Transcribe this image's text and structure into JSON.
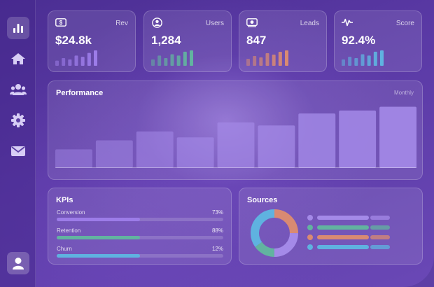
{
  "colors": {
    "accent": "#9c7ce8",
    "green": "#62b3a0",
    "orange": "#d98a72",
    "blue": "#5fb2e0",
    "purple": "#a48ae8"
  },
  "sidebar": {
    "items": [
      {
        "icon": "bar-chart-icon",
        "active": true
      },
      {
        "icon": "home-icon",
        "active": false
      },
      {
        "icon": "users-icon",
        "active": false
      },
      {
        "icon": "gear-icon",
        "active": false
      },
      {
        "icon": "mail-icon",
        "active": false
      }
    ],
    "avatar_icon": "user-icon"
  },
  "stats": [
    {
      "label": "Rev",
      "value": "$24.8k",
      "icon": "dollar-bill-icon",
      "color": "#9c7ce8",
      "spark": [
        4,
        6,
        5,
        8,
        7,
        10,
        12
      ]
    },
    {
      "label": "Users",
      "value": "1,284",
      "icon": "user-circle-icon",
      "color": "#62b3a0",
      "spark": [
        5,
        8,
        6,
        9,
        8,
        11,
        12
      ]
    },
    {
      "label": "Leads",
      "value": "847",
      "icon": "money-icon",
      "color": "#d98a72",
      "spark": [
        5,
        7,
        6,
        9,
        8,
        10,
        11
      ]
    },
    {
      "label": "Score",
      "value": "92.4%",
      "icon": "pulse-icon",
      "color": "#5fb2e0",
      "spark": [
        5,
        7,
        6,
        9,
        8,
        11,
        12
      ]
    }
  ],
  "performance": {
    "title": "Performance",
    "period": "Monthly",
    "chart_data": {
      "type": "bar",
      "values": [
        25,
        37,
        49,
        41,
        61,
        57,
        73,
        77,
        82
      ],
      "ylim": [
        0,
        90
      ]
    }
  },
  "kpis": {
    "title": "KPIs",
    "items": [
      {
        "label": "Conversion",
        "value": "73%",
        "fill": 0.5,
        "color": "#9c7ce8"
      },
      {
        "label": "Retention",
        "value": "88%",
        "fill": 0.5,
        "color": "#62b3a0"
      },
      {
        "label": "Churn",
        "value": "12%",
        "fill": 0.5,
        "color": "#5fb2e0"
      }
    ]
  },
  "sources": {
    "title": "Sources",
    "chart_data": {
      "type": "pie",
      "values": [
        25,
        25,
        15,
        35
      ],
      "colors": [
        "#d98a72",
        "#a48ae8",
        "#62b3a0",
        "#5fb2e0"
      ]
    },
    "legend": [
      {
        "color": "#a48ae8"
      },
      {
        "color": "#62b3a0"
      },
      {
        "color": "#d98a72"
      },
      {
        "color": "#5fb2e0"
      }
    ]
  }
}
